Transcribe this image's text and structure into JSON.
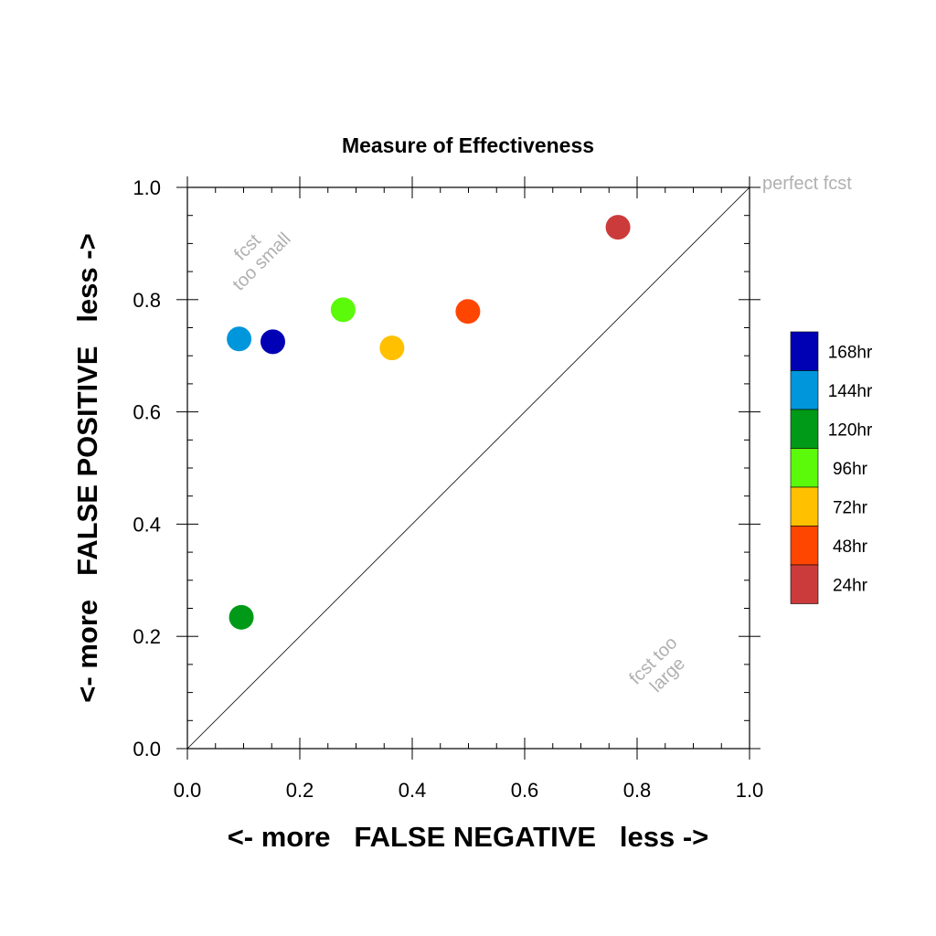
{
  "chart_data": {
    "type": "scatter",
    "title": "Measure of Effectiveness",
    "xlabel": "<- more   FALSE NEGATIVE   less ->",
    "ylabel": "<- more   FALSE POSITIVE   less ->",
    "xlim": [
      0,
      1
    ],
    "ylim": [
      0,
      1
    ],
    "x_ticks": [
      "0.0",
      "0.2",
      "0.4",
      "0.6",
      "0.8",
      "1.0"
    ],
    "y_ticks": [
      "0.0",
      "0.2",
      "0.4",
      "0.6",
      "0.8",
      "1.0"
    ],
    "grid": false,
    "diagonal_line": true,
    "legend_position": "right",
    "annotations": {
      "perfect": "perfect fcst",
      "too_small": [
        "fcst",
        "too small"
      ],
      "too_large": [
        "fcst too",
        "large"
      ]
    },
    "series": [
      {
        "name": "168hr",
        "color": "#0000b4",
        "x": 0.152,
        "y": 0.725
      },
      {
        "name": "144hr",
        "color": "#0096dc",
        "x": 0.092,
        "y": 0.73
      },
      {
        "name": "120hr",
        "color": "#009a18",
        "x": 0.096,
        "y": 0.234
      },
      {
        "name": "96hr",
        "color": "#5afa0a",
        "x": 0.277,
        "y": 0.782
      },
      {
        "name": "72hr",
        "color": "#ffc000",
        "x": 0.364,
        "y": 0.714
      },
      {
        "name": "48hr",
        "color": "#ff4600",
        "x": 0.499,
        "y": 0.779
      },
      {
        "name": "24hr",
        "color": "#cc3b3b",
        "x": 0.766,
        "y": 0.929
      }
    ]
  }
}
